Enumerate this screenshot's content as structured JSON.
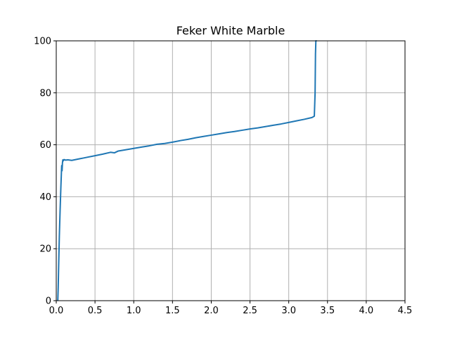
{
  "chart_data": {
    "type": "line",
    "title": "Feker White Marble",
    "xlabel": "",
    "ylabel": "",
    "xlim": [
      0,
      4.5
    ],
    "ylim": [
      0,
      100
    ],
    "xticks": [
      0.0,
      0.5,
      1.0,
      1.5,
      2.0,
      2.5,
      3.0,
      3.5,
      4.0,
      4.5
    ],
    "xtick_labels": [
      "0.0",
      "0.5",
      "1.0",
      "1.5",
      "2.0",
      "2.5",
      "3.0",
      "3.5",
      "4.0",
      "4.5"
    ],
    "yticks": [
      0,
      20,
      40,
      60,
      80,
      100
    ],
    "ytick_labels": [
      "0",
      "20",
      "40",
      "60",
      "80",
      "100"
    ],
    "grid": true,
    "colors": {
      "line": "#1f77b4",
      "grid": "#b0b0b0",
      "axis": "#000000"
    },
    "series": [
      {
        "x": [
          0.02,
          0.025,
          0.03,
          0.04,
          0.05,
          0.06,
          0.07,
          0.075,
          0.08,
          0.085,
          0.09,
          0.1,
          0.12,
          0.15,
          0.2,
          0.25,
          0.3,
          0.35,
          0.4,
          0.5,
          0.6,
          0.7,
          0.75,
          0.8,
          0.9,
          1.0,
          1.1,
          1.2,
          1.3,
          1.4,
          1.5,
          1.6,
          1.7,
          1.8,
          1.9,
          2.0,
          2.1,
          2.2,
          2.3,
          2.4,
          2.5,
          2.6,
          2.7,
          2.8,
          2.9,
          3.0,
          3.1,
          3.2,
          3.3,
          3.33,
          3.34,
          3.345,
          3.35,
          3.36
        ],
        "y": [
          0,
          5,
          12,
          25,
          35,
          44,
          52,
          50,
          53,
          54.2,
          53.8,
          54.3,
          54.1,
          54.2,
          54.0,
          54.3,
          54.6,
          54.9,
          55.2,
          55.8,
          56.4,
          57.1,
          56.9,
          57.6,
          58.1,
          58.6,
          59.1,
          59.6,
          60.2,
          60.5,
          61.0,
          61.6,
          62.1,
          62.7,
          63.2,
          63.7,
          64.2,
          64.7,
          65.1,
          65.6,
          66.1,
          66.5,
          67.0,
          67.5,
          68.0,
          68.6,
          69.2,
          69.8,
          70.5,
          71.0,
          80,
          95,
          100,
          100
        ]
      }
    ]
  }
}
